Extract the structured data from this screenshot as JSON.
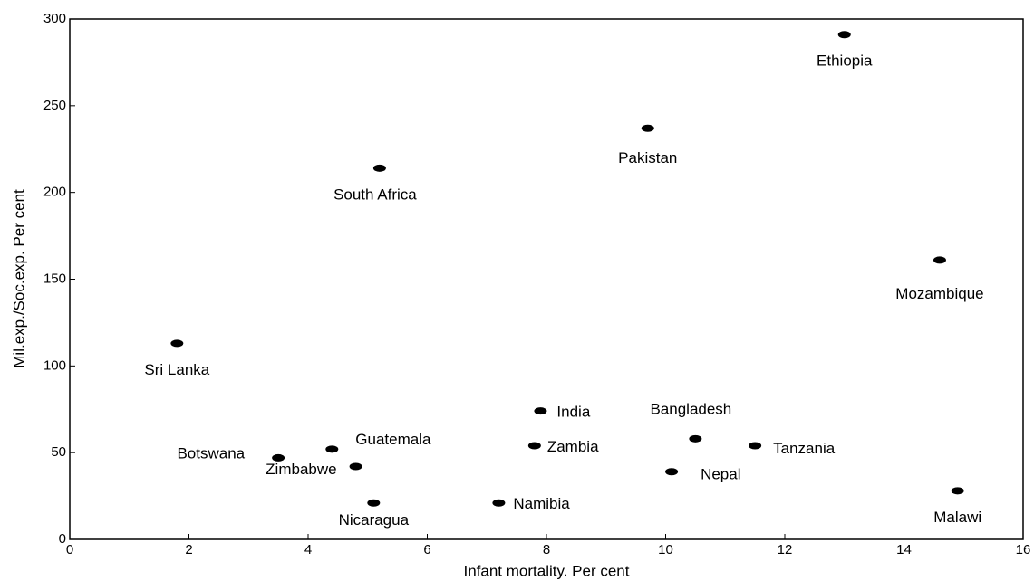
{
  "chart_data": {
    "type": "scatter",
    "x_label": "Infant mortality.  Per cent",
    "y_label": "Mil.exp./Soc.exp.  Per cent",
    "labels": [
      "Ethiopia",
      "Pakistan",
      "South Africa",
      "Mozambique",
      "Sri Lanka",
      "India",
      "Bangladesh",
      "Tanzania",
      "Zambia",
      "Guatemala",
      "Botswana",
      "Zimbabwe",
      "Nepal",
      "Namibia",
      "Nicaragua",
      "Malawi"
    ],
    "x": [
      13.0,
      9.7,
      5.2,
      14.6,
      1.8,
      7.9,
      10.5,
      11.5,
      7.8,
      4.4,
      3.5,
      4.8,
      10.1,
      7.2,
      5.1,
      14.9
    ],
    "y": [
      291,
      237,
      214,
      161,
      113,
      74,
      58,
      54,
      54,
      52,
      47,
      42,
      39,
      21,
      21,
      28
    ],
    "color": "#000000",
    "xlim": [
      0,
      16
    ],
    "xticks": [
      0,
      2,
      4,
      6,
      8,
      10,
      12,
      14,
      16
    ],
    "ylim": [
      0,
      300
    ],
    "yticks": [
      0,
      50,
      100,
      150,
      200,
      250,
      300
    ],
    "grid": false
  }
}
